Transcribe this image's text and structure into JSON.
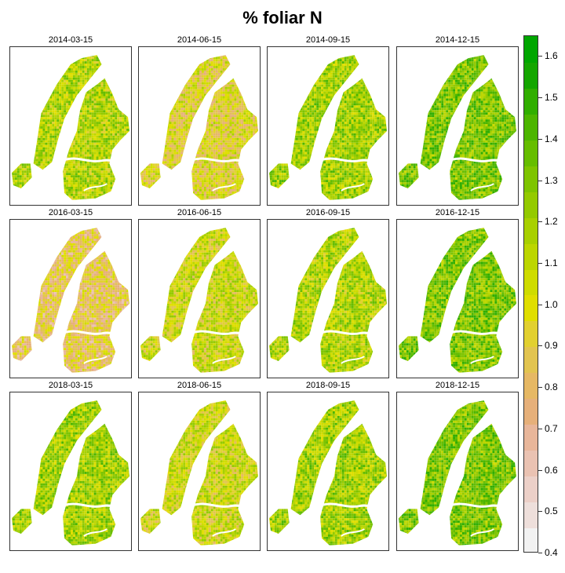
{
  "title": "% foliar N",
  "chart_data": {
    "type": "heatmap",
    "title": "% foliar N",
    "panels": [
      {
        "date": "2014-03-15",
        "mean": 1.15
      },
      {
        "date": "2014-06-15",
        "mean": 0.95
      },
      {
        "date": "2014-09-15",
        "mean": 1.2
      },
      {
        "date": "2014-12-15",
        "mean": 1.3
      },
      {
        "date": "2016-03-15",
        "mean": 0.85
      },
      {
        "date": "2016-06-15",
        "mean": 1.05
      },
      {
        "date": "2016-09-15",
        "mean": 1.15
      },
      {
        "date": "2016-12-15",
        "mean": 1.3
      },
      {
        "date": "2018-03-15",
        "mean": 1.2
      },
      {
        "date": "2018-06-15",
        "mean": 1.05
      },
      {
        "date": "2018-09-15",
        "mean": 1.2
      },
      {
        "date": "2018-12-15",
        "mean": 1.3
      }
    ],
    "legend": {
      "range": [
        0.4,
        1.65
      ],
      "ticks": [
        "0.4",
        "0.5",
        "0.6",
        "0.7",
        "0.8",
        "0.9",
        "1.0",
        "1.1",
        "1.2",
        "1.3",
        "1.4",
        "1.5",
        "1.6"
      ],
      "colors": [
        "#f2f2f2",
        "#eedfdb",
        "#ecd0c8",
        "#eac2b2",
        "#e8b69a",
        "#e6b07a",
        "#e6b864",
        "#e2c450",
        "#e2d030",
        "#e0de00",
        "#cfdc00",
        "#bcd600",
        "#a8d000",
        "#94ca00",
        "#7ec400",
        "#66bd00",
        "#4cb500",
        "#30ae00",
        "#14a600",
        "#00a600"
      ]
    }
  }
}
